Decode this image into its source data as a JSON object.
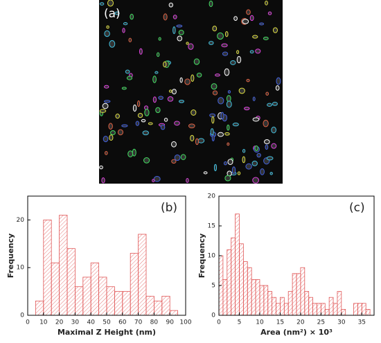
{
  "panel_label": "(a)",
  "chart_data": [
    {
      "type": "histogram",
      "label": "(b)",
      "xlabel": "Maximal Z Height (nm)",
      "ylabel": "Frequency",
      "color": "#e05555",
      "bins": [
        5,
        10,
        15,
        20,
        25,
        30,
        35,
        40,
        45,
        50,
        55,
        60,
        65,
        70,
        75,
        80,
        85,
        90,
        95
      ],
      "counts": [
        3,
        20,
        11,
        21,
        14,
        6,
        8,
        11,
        8,
        6,
        5,
        5,
        13,
        17,
        4,
        3,
        4,
        1
      ],
      "xlim": [
        0,
        100
      ],
      "ylim": [
        0,
        25
      ],
      "xticks": [
        0,
        10,
        20,
        30,
        40,
        50,
        60,
        70,
        80,
        90,
        100
      ],
      "yticks": [
        0,
        10,
        20
      ]
    },
    {
      "type": "histogram",
      "label": "(c)",
      "xlabel": "Area (nm²) × 10³",
      "ylabel": "Frequency",
      "color": "#e05555",
      "bins": [
        0,
        1,
        2,
        3,
        4,
        5,
        6,
        7,
        8,
        9,
        10,
        11,
        12,
        13,
        14,
        15,
        16,
        17,
        18,
        19,
        20,
        21,
        22,
        23,
        24,
        25,
        26,
        27,
        28,
        29,
        30,
        31,
        32,
        33,
        34,
        35,
        36,
        37
      ],
      "counts": [
        10,
        6,
        11,
        13,
        17,
        12,
        9,
        8,
        6,
        6,
        5,
        5,
        4,
        3,
        2,
        3,
        2,
        4,
        7,
        7,
        8,
        4,
        3,
        2,
        2,
        2,
        1,
        3,
        2,
        4,
        1,
        0,
        0,
        2,
        2,
        2,
        1
      ],
      "xlim": [
        0,
        38
      ],
      "ylim": [
        0,
        20
      ],
      "xticks": [
        0,
        5,
        10,
        15,
        20,
        25,
        30,
        35
      ],
      "yticks": [
        0,
        5,
        10,
        15,
        20
      ]
    }
  ]
}
